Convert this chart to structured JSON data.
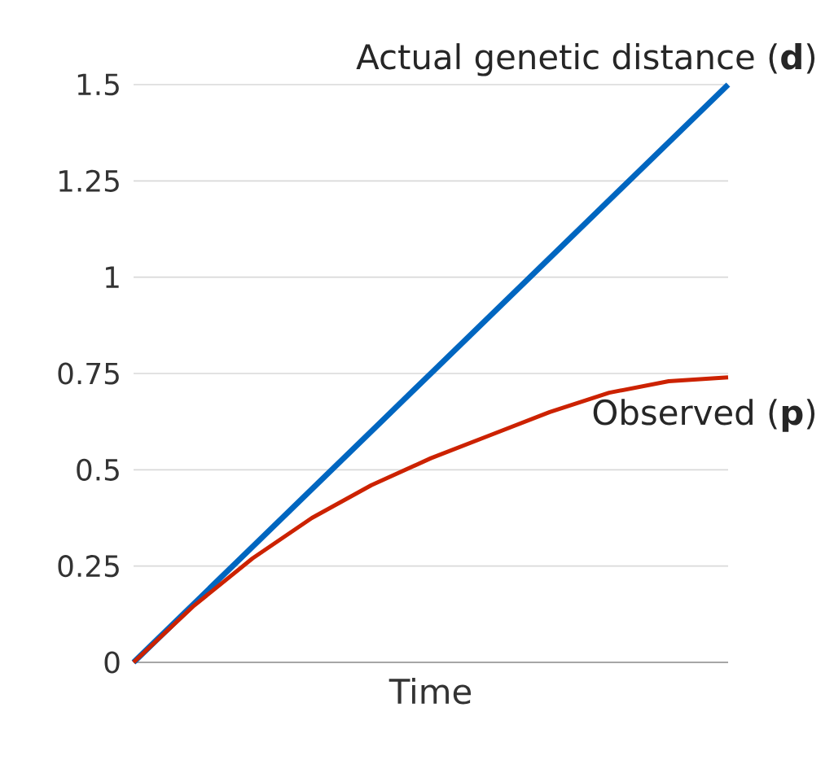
{
  "chart_data": {
    "type": "line",
    "xlabel": "Time",
    "categories": [
      null,
      null,
      null,
      null,
      null,
      null,
      null,
      null,
      null,
      null,
      null
    ],
    "series": [
      {
        "name": "Actual genetic distance (**d**)",
        "color": "#0066c0",
        "values": [
          0,
          0.15,
          0.3,
          0.45,
          0.6,
          0.75,
          0.9,
          1.05,
          1.2,
          1.35,
          1.5
        ]
      },
      {
        "name": "Observed (**p**)",
        "color": "#cc2200",
        "values": [
          0,
          0.145,
          0.27,
          0.375,
          0.46,
          0.53,
          0.59,
          0.65,
          0.7,
          0.73,
          0.74
        ]
      }
    ],
    "ylim": [
      0,
      1.5
    ],
    "yticks": [
      0,
      0.25,
      0.5,
      0.75,
      1,
      1.25,
      1.5
    ],
    "grid": "y",
    "marker": "none",
    "line_style": "solid"
  }
}
